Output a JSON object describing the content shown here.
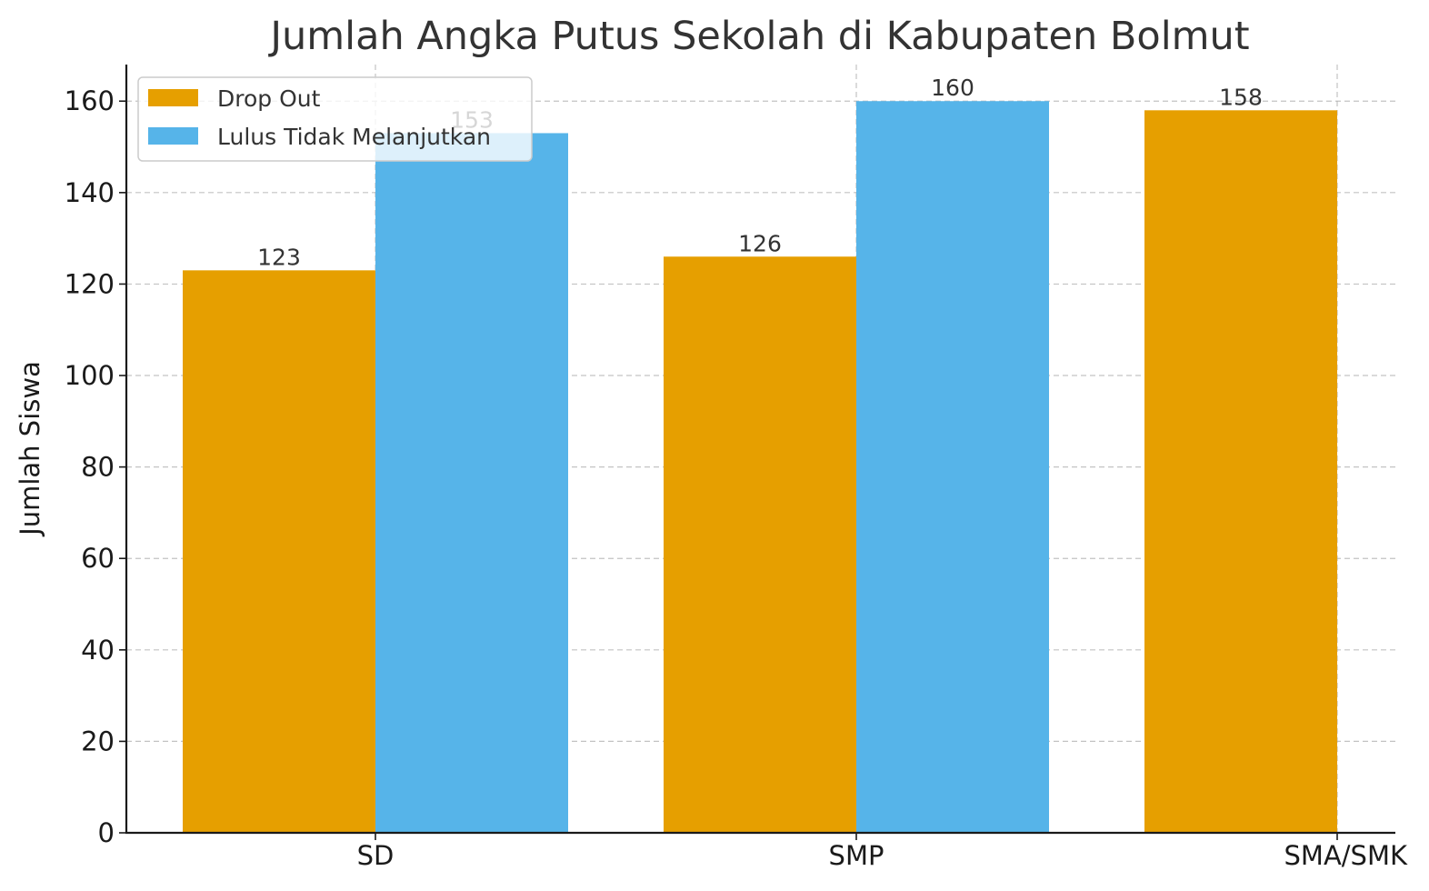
{
  "chart_data": {
    "type": "bar",
    "title": "Jumlah Angka Putus Sekolah di Kabupaten Bolmut",
    "xlabel": "",
    "ylabel": "Jumlah Siswa",
    "categories": [
      "SD",
      "SMP",
      "SMA/SMK"
    ],
    "ylim": [
      0,
      168
    ],
    "yticks": [
      0,
      20,
      40,
      60,
      80,
      100,
      120,
      140,
      160
    ],
    "grid": true,
    "legend_position": "top-left",
    "series": [
      {
        "name": "Drop Out",
        "color": "#e69f00",
        "values": [
          123,
          126,
          158
        ]
      },
      {
        "name": "Lulus Tidak Melanjutkan",
        "color": "#56b4e9",
        "values": [
          153,
          160,
          null
        ]
      }
    ]
  }
}
